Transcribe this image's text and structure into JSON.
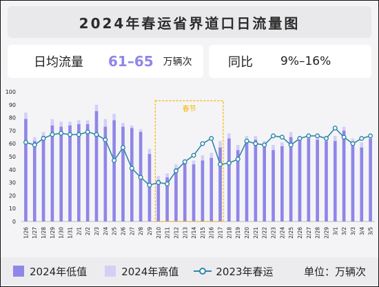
{
  "title": "2024年春运省界道口日流量图",
  "kpi_daily": {
    "label": "日均流量",
    "value": "61–65",
    "unit": "万辆次"
  },
  "kpi_yoy": {
    "label": "同比",
    "value": "9%–16%"
  },
  "legend": {
    "low": "2024年低值",
    "high": "2024年高值",
    "line": "2023年春运",
    "unit_label": "单位：万辆次"
  },
  "colors": {
    "low": "#8f86e8",
    "high": "#d3d0f6",
    "line": "#2e86a8",
    "festival": "#f5b400"
  },
  "chart_data": {
    "type": "bar",
    "categories": [
      "1/26",
      "1/27",
      "1/28",
      "1/29",
      "1/30",
      "1/31",
      "2/1",
      "2/2",
      "2/3",
      "2/4",
      "2/5",
      "2/6",
      "2/7",
      "2/8",
      "2/9",
      "2/10",
      "2/11",
      "2/12",
      "2/13",
      "2/14",
      "2/15",
      "2/16",
      "2/17",
      "2/18",
      "2/19",
      "2/20",
      "2/21",
      "2/22",
      "2/23",
      "2/24",
      "2/25",
      "2/26",
      "2/27",
      "2/28",
      "2/29",
      "3/1",
      "3/2",
      "3/3",
      "3/4",
      "3/5"
    ],
    "series": [
      {
        "name": "2024年低值",
        "type": "bar",
        "values": [
          79,
          62,
          66,
          74,
          73,
          74,
          75,
          75,
          85,
          73,
          78,
          73,
          72,
          69,
          52,
          32,
          34,
          41,
          45,
          44,
          47,
          49,
          57,
          64,
          55,
          63,
          63,
          60,
          55,
          58,
          65,
          63,
          64,
          63,
          62,
          62,
          70,
          60,
          57,
          64
        ]
      },
      {
        "name": "2024年高值",
        "type": "bar",
        "values": [
          84,
          65,
          69,
          79,
          77,
          77,
          78,
          78,
          90,
          79,
          83,
          76,
          74,
          71,
          56,
          35,
          37,
          44,
          48,
          47,
          51,
          53,
          62,
          68,
          59,
          66,
          66,
          62,
          59,
          61,
          69,
          66,
          67,
          66,
          66,
          66,
          73,
          64,
          61,
          66
        ]
      },
      {
        "name": "2023年春运",
        "type": "line",
        "values": [
          61,
          59,
          64,
          67,
          68,
          67,
          67,
          69,
          67,
          63,
          47,
          57,
          41,
          34,
          28,
          30,
          29,
          39,
          46,
          51,
          60,
          64,
          44,
          45,
          48,
          62,
          60,
          59,
          66,
          65,
          59,
          64,
          66,
          66,
          64,
          72,
          65,
          60,
          64,
          66
        ]
      }
    ],
    "ylim": [
      0,
      100
    ],
    "yticks": [
      0,
      10,
      20,
      30,
      40,
      50,
      60,
      70,
      80,
      90,
      100
    ],
    "annotation": {
      "label": "春节",
      "start": "2/10",
      "end": "2/17"
    }
  }
}
